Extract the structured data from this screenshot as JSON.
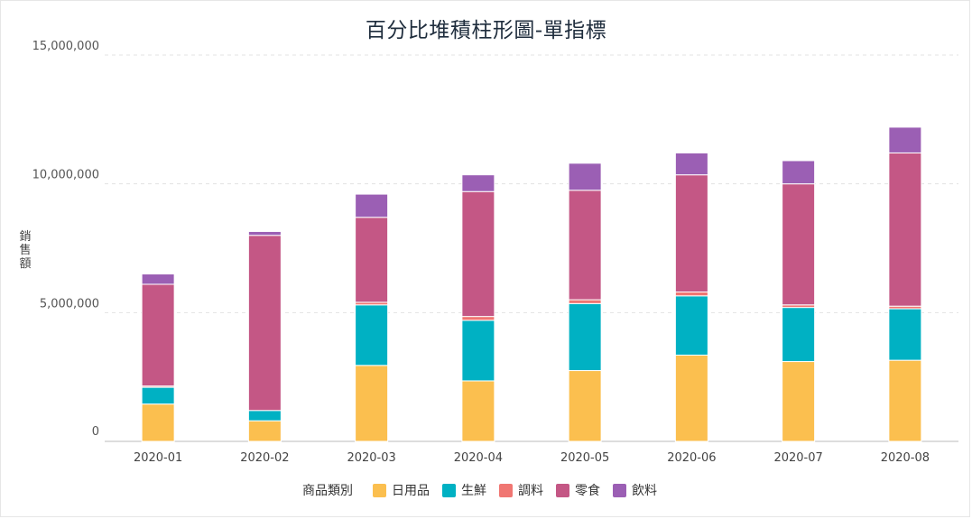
{
  "chart_data": {
    "type": "bar",
    "stacked": true,
    "title": "百分比堆積柱形圖-單指標",
    "ylabel": "銷售額",
    "xlabel": "",
    "ylim": [
      0,
      15000000
    ],
    "yticks": [
      0,
      5000000,
      10000000,
      15000000
    ],
    "ytick_labels": [
      "0",
      "5,000,000",
      "10,000,000",
      "15,000,000"
    ],
    "grid": true,
    "legend_position": "bottom",
    "legend_title": "商品類別",
    "categories": [
      "2020-01",
      "2020-02",
      "2020-03",
      "2020-04",
      "2020-05",
      "2020-06",
      "2020-07",
      "2020-08"
    ],
    "series": [
      {
        "name": "日用品",
        "color": "#fbbf4f",
        "values": [
          1450000,
          800000,
          2950000,
          2350000,
          2750000,
          3350000,
          3100000,
          3150000
        ]
      },
      {
        "name": "生鮮",
        "color": "#00b1c3",
        "values": [
          650000,
          400000,
          2350000,
          2350000,
          2600000,
          2300000,
          2100000,
          2000000
        ]
      },
      {
        "name": "調料",
        "color": "#f07672",
        "values": [
          50000,
          0,
          100000,
          150000,
          150000,
          150000,
          100000,
          100000
        ]
      },
      {
        "name": "零食",
        "color": "#c45785",
        "values": [
          3950000,
          6800000,
          3300000,
          4850000,
          4250000,
          4550000,
          4700000,
          5950000
        ]
      },
      {
        "name": "飲料",
        "color": "#9b5fb4",
        "values": [
          400000,
          150000,
          900000,
          650000,
          1050000,
          850000,
          900000,
          1000000
        ]
      }
    ]
  }
}
